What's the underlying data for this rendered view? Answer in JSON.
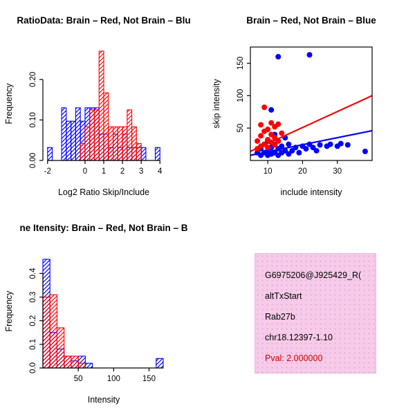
{
  "figure": {
    "background": "#ffffff",
    "colors": {
      "brain": "#ff0000",
      "not_brain": "#0000ff",
      "overlap_appearance": "#993399",
      "axis": "#000000",
      "info_box_bg": "#f6cbe9",
      "pval_red": "#cc0000"
    }
  },
  "chart_data": [
    {
      "id": "hist-log2-ratio",
      "type": "bar",
      "variant": "overlaid-histogram",
      "title": "RatioData: Brain – Red, Not Brain – Blu",
      "xlabel": "Log2 Ratio Skip/Include",
      "ylabel": "Frequency",
      "xlim": [
        -2.25,
        4.25
      ],
      "ylim": [
        0,
        0.28
      ],
      "xticks": [
        -2,
        0,
        1,
        2,
        3,
        4
      ],
      "xtick_labels": [
        "-2",
        "0",
        "1",
        "2",
        "3",
        "4"
      ],
      "yticks": [
        0,
        0.1,
        0.2
      ],
      "ytick_labels": [
        "0.00",
        "0.10",
        "0.20"
      ],
      "bin_width": 0.25,
      "legend_note": "Brain = red, Not Brain = blue; overlap renders purple",
      "series": [
        {
          "name": "Not Brain",
          "color": "#0000ff",
          "bins": [
            [
              -2,
              0.032
            ],
            [
              -1.25,
              0.13
            ],
            [
              -1,
              0.097
            ],
            [
              -0.75,
              0.097
            ],
            [
              -0.5,
              0.13
            ],
            [
              -0.25,
              0.097
            ],
            [
              0,
              0.13
            ],
            [
              0.25,
              0.13
            ],
            [
              0.5,
              0.13
            ],
            [
              0.75,
              0.065
            ],
            [
              1,
              0.065
            ],
            [
              1.25,
              0.032
            ],
            [
              1.5,
              0.065
            ],
            [
              1.75,
              0.032
            ],
            [
              2,
              0.065
            ],
            [
              2.25,
              0.032
            ],
            [
              2.5,
              0.032
            ],
            [
              2.75,
              0.032
            ],
            [
              3,
              0.032
            ],
            [
              3.75,
              0.032
            ]
          ]
        },
        {
          "name": "Brain",
          "color": "#ff0000",
          "bins": [
            [
              -0.25,
              0.042
            ],
            [
              0,
              0.083
            ],
            [
              0.25,
              0.125
            ],
            [
              0.5,
              0.125
            ],
            [
              0.75,
              0.27
            ],
            [
              1,
              0.167
            ],
            [
              1.25,
              0.083
            ],
            [
              1.5,
              0.083
            ],
            [
              1.75,
              0.083
            ],
            [
              2,
              0.083
            ],
            [
              2.25,
              0.125
            ],
            [
              2.5,
              0.083
            ],
            [
              2.75,
              0.042
            ]
          ]
        }
      ]
    },
    {
      "id": "scatter-intensity",
      "type": "scatter",
      "title": "Brain – Red, Not Brain – Blue",
      "xlabel": "include intensity",
      "ylabel": "skip intensity",
      "xlim": [
        5,
        40
      ],
      "ylim": [
        0,
        175
      ],
      "xticks": [
        10,
        20,
        30
      ],
      "xtick_labels": [
        "10",
        "20",
        "30"
      ],
      "yticks": [
        50,
        100,
        150
      ],
      "ytick_labels": [
        "50",
        "100",
        "150"
      ],
      "series": [
        {
          "name": "Not Brain",
          "color": "#0000ff",
          "points": [
            [
              7,
              12
            ],
            [
              8,
              8
            ],
            [
              8,
              18
            ],
            [
              9,
              12
            ],
            [
              9,
              25
            ],
            [
              10,
              8
            ],
            [
              10,
              15
            ],
            [
              10,
              30
            ],
            [
              11,
              10
            ],
            [
              11,
              20
            ],
            [
              11,
              78
            ],
            [
              12,
              12
            ],
            [
              12,
              25
            ],
            [
              12,
              40
            ],
            [
              13,
              8
            ],
            [
              13,
              18
            ],
            [
              13,
              30
            ],
            [
              13,
              160
            ],
            [
              14,
              12
            ],
            [
              14,
              22
            ],
            [
              15,
              15
            ],
            [
              15,
              35
            ],
            [
              16,
              10
            ],
            [
              16,
              25
            ],
            [
              17,
              15
            ],
            [
              18,
              20
            ],
            [
              19,
              12
            ],
            [
              20,
              22
            ],
            [
              21,
              18
            ],
            [
              22,
              163
            ],
            [
              22,
              25
            ],
            [
              23,
              20
            ],
            [
              24,
              15
            ],
            [
              25,
              24
            ],
            [
              27,
              22
            ],
            [
              28,
              25
            ],
            [
              30,
              22
            ],
            [
              31,
              26
            ],
            [
              33,
              24
            ],
            [
              38,
              14
            ]
          ]
        },
        {
          "name": "Brain",
          "color": "#ff0000",
          "points": [
            [
              7,
              18
            ],
            [
              7,
              30
            ],
            [
              8,
              22
            ],
            [
              8,
              38
            ],
            [
              8,
              55
            ],
            [
              9,
              25
            ],
            [
              9,
              45
            ],
            [
              9,
              82
            ],
            [
              10,
              20
            ],
            [
              10,
              32
            ],
            [
              10,
              48
            ],
            [
              11,
              28
            ],
            [
              11,
              40
            ],
            [
              11,
              58
            ],
            [
              12,
              24
            ],
            [
              12,
              35
            ],
            [
              12,
              52
            ],
            [
              13,
              30
            ],
            [
              13,
              56
            ],
            [
              14,
              42
            ]
          ]
        }
      ],
      "fit_lines": [
        {
          "name": "not-brain-fit",
          "color": "#0000ff",
          "x": [
            5,
            40
          ],
          "y": [
            8,
            46
          ]
        },
        {
          "name": "brain-fit",
          "color": "#ff0000",
          "x": [
            5,
            40
          ],
          "y": [
            14,
            100
          ]
        }
      ]
    },
    {
      "id": "hist-gene-intensity",
      "type": "bar",
      "variant": "overlaid-histogram",
      "title": "ne Itensity: Brain – Red, Not Brain – B",
      "xlabel": "Intensity",
      "ylabel": "Frequency",
      "xlim": [
        0,
        172
      ],
      "ylim": [
        0,
        0.48
      ],
      "xticks": [
        50,
        100,
        150
      ],
      "xtick_labels": [
        "50",
        "100",
        "150"
      ],
      "yticks": [
        0,
        0.1,
        0.2,
        0.3,
        0.4
      ],
      "ytick_labels": [
        "0.0",
        "0.1",
        "0.2",
        "0.3",
        "0.4"
      ],
      "bin_width": 10,
      "series": [
        {
          "name": "Not Brain",
          "color": "#0000ff",
          "bins": [
            [
              0,
              0.46
            ],
            [
              10,
              0.15
            ],
            [
              20,
              0.08
            ],
            [
              30,
              0.05
            ],
            [
              40,
              0.03
            ],
            [
              50,
              0.05
            ],
            [
              60,
              0.02
            ],
            [
              160,
              0.04
            ]
          ]
        },
        {
          "name": "Brain",
          "color": "#ff0000",
          "bins": [
            [
              0,
              0.3
            ],
            [
              10,
              0.31
            ],
            [
              20,
              0.17
            ],
            [
              30,
              0.05
            ],
            [
              40,
              0.05
            ],
            [
              50,
              0.02
            ]
          ]
        }
      ]
    }
  ],
  "info_box": {
    "bg": "#f6cbe9",
    "lines": [
      {
        "text": "G6975206@J925429_R(",
        "color": "#000000"
      },
      {
        "text": "altTxStart",
        "color": "#000000"
      },
      {
        "text": "Rab27b",
        "color": "#000000"
      },
      {
        "text": "chr18.12397-1.10",
        "color": "#000000"
      },
      {
        "text": "Pval: 2.000000",
        "color": "#cc0000"
      }
    ]
  }
}
